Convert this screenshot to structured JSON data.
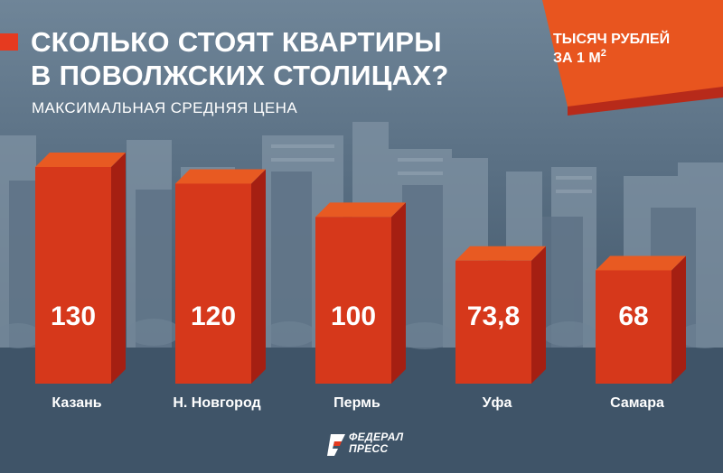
{
  "header": {
    "title_line1": "СКОЛЬКО СТОЯТ КВАРТИРЫ",
    "title_line2": "В ПОВОЛЖСКИХ СТОЛИЦАХ?",
    "subtitle": "МАКСИМАЛЬНАЯ СРЕДНЯЯ ЦЕНА"
  },
  "unit_badge": {
    "line1": "ТЫСЯЧ РУБЛЕЙ",
    "line2": "ЗА 1 М",
    "superscript": "2"
  },
  "logo": {
    "line1": "ФЕДЕРАЛ",
    "line2": "ПРЕСС"
  },
  "colors": {
    "bar_front": "#d6381b",
    "bar_top": "#e85a22",
    "bar_side": "#a51f12",
    "accent": "#e63a1f",
    "badge": "#e8551f",
    "badge_shadow": "#b72a1a"
  },
  "chart_data": {
    "type": "bar",
    "categories": [
      "Казань",
      "Н. Новгород",
      "Пермь",
      "Уфа",
      "Самара"
    ],
    "values": [
      130,
      120,
      100,
      73.8,
      68
    ],
    "value_labels": [
      "130",
      "120",
      "100",
      "73,8",
      "68"
    ],
    "title": "СКОЛЬКО СТОЯТ КВАРТИРЫ В ПОВОЛЖСКИХ СТОЛИЦАХ?",
    "subtitle": "МАКСИМАЛЬНАЯ СРЕДНЯЯ ЦЕНА",
    "ylabel": "ТЫСЯЧ РУБЛЕЙ ЗА 1 М2",
    "xlabel": "",
    "grid": false,
    "legend": "none",
    "style": "3d"
  }
}
